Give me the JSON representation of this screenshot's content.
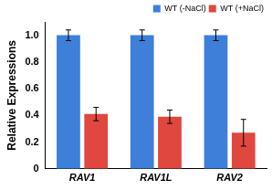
{
  "chart_data": {
    "type": "bar",
    "categories": [
      "RAV1",
      "RAV1L",
      "RAV2"
    ],
    "series": [
      {
        "name": "WT (-NaCl)",
        "color": "#3d7fd9",
        "values": [
          1.0,
          1.0,
          1.0
        ],
        "errors": [
          0.04,
          0.04,
          0.04
        ]
      },
      {
        "name": "WT (+NaCl)",
        "color": "#e0473f",
        "values": [
          0.41,
          0.39,
          0.27
        ],
        "errors": [
          0.05,
          0.05,
          0.1
        ]
      }
    ],
    "y_label": "Relative Expressions",
    "ylim": [
      0,
      1.1
    ],
    "yticks": [
      0,
      0.2,
      0.4,
      0.6,
      0.8,
      {
        "value": 1,
        "label": "1.0"
      }
    ],
    "grid": false,
    "legend": "top-right"
  }
}
